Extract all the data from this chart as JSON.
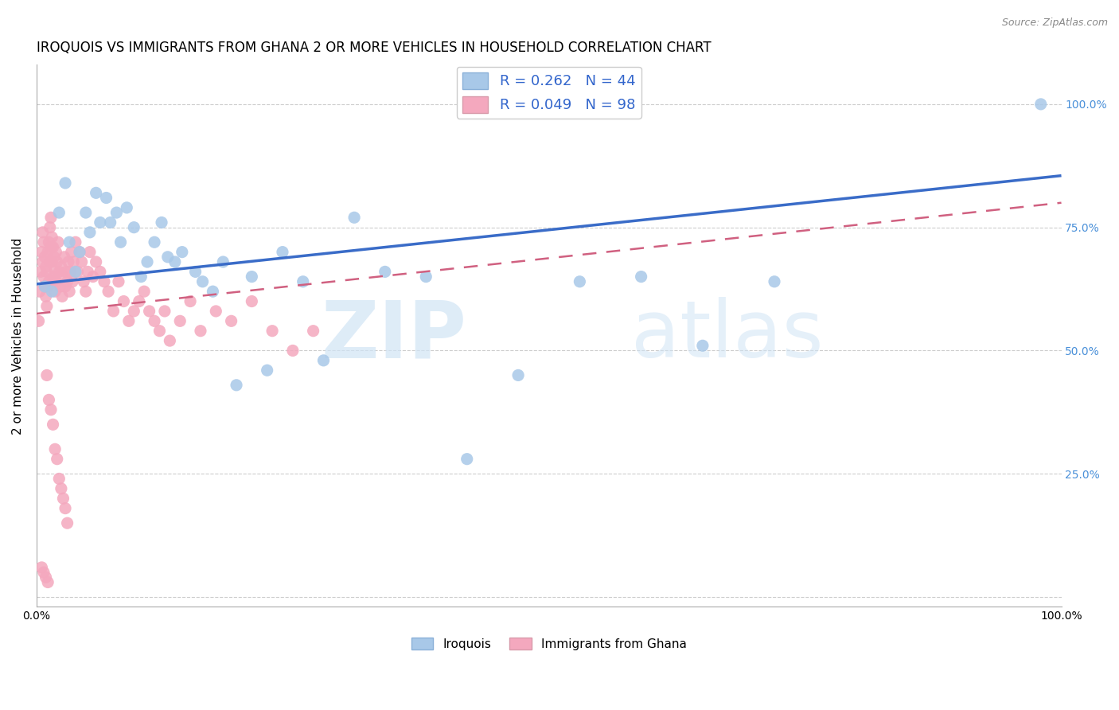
{
  "title": "IROQUOIS VS IMMIGRANTS FROM GHANA 2 OR MORE VEHICLES IN HOUSEHOLD CORRELATION CHART",
  "source": "Source: ZipAtlas.com",
  "ylabel": "2 or more Vehicles in Household",
  "legend_label_1": "R = 0.262   N = 44",
  "legend_label_2": "R = 0.049   N = 98",
  "legend_bottom_1": "Iroquois",
  "legend_bottom_2": "Immigrants from Ghana",
  "watermark_zip": "ZIP",
  "watermark_atlas": "atlas",
  "iroquois_color": "#a8c8e8",
  "ghana_color": "#f4a8be",
  "iroquois_line_color": "#3a6cc8",
  "ghana_line_color": "#d06080",
  "iroquois_x": [
    0.008,
    0.015,
    0.022,
    0.028,
    0.032,
    0.038,
    0.042,
    0.048,
    0.052,
    0.058,
    0.062,
    0.068,
    0.072,
    0.078,
    0.082,
    0.088,
    0.095,
    0.102,
    0.108,
    0.115,
    0.122,
    0.128,
    0.135,
    0.142,
    0.155,
    0.162,
    0.172,
    0.182,
    0.195,
    0.21,
    0.225,
    0.24,
    0.26,
    0.28,
    0.31,
    0.34,
    0.38,
    0.42,
    0.47,
    0.53,
    0.59,
    0.65,
    0.72,
    0.98
  ],
  "iroquois_y": [
    0.63,
    0.62,
    0.78,
    0.84,
    0.72,
    0.66,
    0.7,
    0.78,
    0.74,
    0.82,
    0.76,
    0.81,
    0.76,
    0.78,
    0.72,
    0.79,
    0.75,
    0.65,
    0.68,
    0.72,
    0.76,
    0.69,
    0.68,
    0.7,
    0.66,
    0.64,
    0.62,
    0.68,
    0.43,
    0.65,
    0.46,
    0.7,
    0.64,
    0.48,
    0.77,
    0.66,
    0.65,
    0.28,
    0.45,
    0.64,
    0.65,
    0.51,
    0.64,
    1.0
  ],
  "ghana_x": [
    0.002,
    0.003,
    0.004,
    0.005,
    0.006,
    0.006,
    0.007,
    0.007,
    0.008,
    0.008,
    0.009,
    0.009,
    0.01,
    0.01,
    0.011,
    0.011,
    0.012,
    0.012,
    0.013,
    0.013,
    0.014,
    0.014,
    0.015,
    0.015,
    0.016,
    0.016,
    0.017,
    0.017,
    0.018,
    0.018,
    0.019,
    0.019,
    0.02,
    0.021,
    0.022,
    0.023,
    0.024,
    0.025,
    0.026,
    0.027,
    0.028,
    0.029,
    0.03,
    0.031,
    0.032,
    0.033,
    0.034,
    0.035,
    0.036,
    0.038,
    0.04,
    0.042,
    0.044,
    0.046,
    0.048,
    0.05,
    0.052,
    0.055,
    0.058,
    0.062,
    0.066,
    0.07,
    0.075,
    0.08,
    0.085,
    0.09,
    0.095,
    0.1,
    0.105,
    0.11,
    0.115,
    0.12,
    0.125,
    0.13,
    0.14,
    0.15,
    0.16,
    0.175,
    0.19,
    0.21,
    0.23,
    0.25,
    0.27,
    0.01,
    0.012,
    0.014,
    0.016,
    0.018,
    0.02,
    0.022,
    0.024,
    0.026,
    0.028,
    0.03,
    0.005,
    0.007,
    0.009,
    0.011
  ],
  "ghana_y": [
    0.56,
    0.62,
    0.66,
    0.7,
    0.74,
    0.68,
    0.72,
    0.65,
    0.69,
    0.63,
    0.67,
    0.61,
    0.66,
    0.59,
    0.63,
    0.7,
    0.64,
    0.72,
    0.68,
    0.75,
    0.71,
    0.77,
    0.73,
    0.68,
    0.64,
    0.71,
    0.65,
    0.69,
    0.62,
    0.66,
    0.7,
    0.64,
    0.68,
    0.72,
    0.66,
    0.63,
    0.67,
    0.61,
    0.65,
    0.69,
    0.63,
    0.66,
    0.64,
    0.68,
    0.62,
    0.66,
    0.7,
    0.64,
    0.68,
    0.72,
    0.66,
    0.7,
    0.68,
    0.64,
    0.62,
    0.66,
    0.7,
    0.65,
    0.68,
    0.66,
    0.64,
    0.62,
    0.58,
    0.64,
    0.6,
    0.56,
    0.58,
    0.6,
    0.62,
    0.58,
    0.56,
    0.54,
    0.58,
    0.52,
    0.56,
    0.6,
    0.54,
    0.58,
    0.56,
    0.6,
    0.54,
    0.5,
    0.54,
    0.45,
    0.4,
    0.38,
    0.35,
    0.3,
    0.28,
    0.24,
    0.22,
    0.2,
    0.18,
    0.15,
    0.06,
    0.05,
    0.04,
    0.03
  ],
  "xlim": [
    0.0,
    1.0
  ],
  "ylim": [
    -0.02,
    1.08
  ],
  "iro_trend_x0": 0.0,
  "iro_trend_y0": 0.635,
  "iro_trend_x1": 1.0,
  "iro_trend_y1": 0.855,
  "ghana_trend_x0": 0.0,
  "ghana_trend_y0": 0.575,
  "ghana_trend_x1": 1.0,
  "ghana_trend_y1": 0.8
}
